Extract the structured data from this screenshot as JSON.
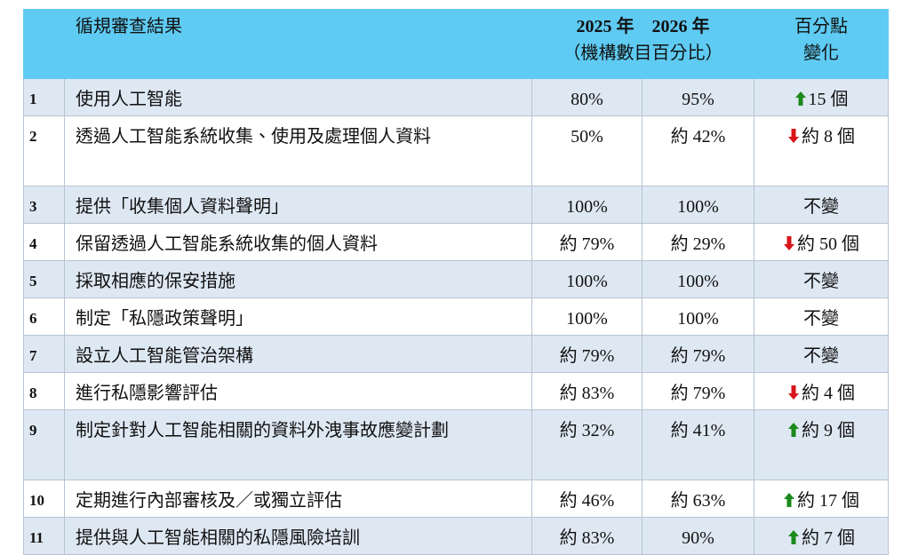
{
  "table": {
    "header": {
      "item": "循規審查結果",
      "year_2025": "2025 年",
      "year_2026": "2026 年",
      "unit": "（機構數目百分比）",
      "change": [
        "百分點",
        "變化"
      ]
    },
    "rows": [
      [
        "1",
        "使用人工智能",
        "80%",
        "95%",
        "15 個"
      ],
      [
        "2",
        "透過人工智能系統收集、使用及處理個人資料",
        "50%",
        "約 42%",
        "約 8 個"
      ],
      [
        "3",
        "提供「收集個人資料聲明」",
        "100%",
        "100%",
        "不變"
      ],
      [
        "4",
        "保留透過人工智能系統收集的個人資料",
        "約 79%",
        "約 29%",
        "約 50 個"
      ],
      [
        "5",
        "採取相應的保安措施",
        "100%",
        "100%",
        "不變"
      ],
      [
        "6",
        "制定「私隱政策聲明」",
        "100%",
        "100%",
        "不變"
      ],
      [
        "7",
        "設立人工智能管治架構",
        "約 79%",
        "約 79%",
        "不變"
      ],
      [
        "8",
        "進行私隱影響評估",
        "約 83%",
        "約 79%",
        "約 4 個"
      ],
      [
        "9",
        "制定針對人工智能相關的資料外洩事故應變計劃",
        "約 32%",
        "約 41%",
        "約 9 個"
      ],
      [
        "10",
        "定期進行內部審核及／或獨立評估",
        "約 46%",
        "約 63%",
        "約 17 個"
      ],
      [
        "11",
        "提供與人工智能相關的私隱風險培訓",
        "約 83%",
        "90%",
        "約 7 個"
      ]
    ]
  }
}
